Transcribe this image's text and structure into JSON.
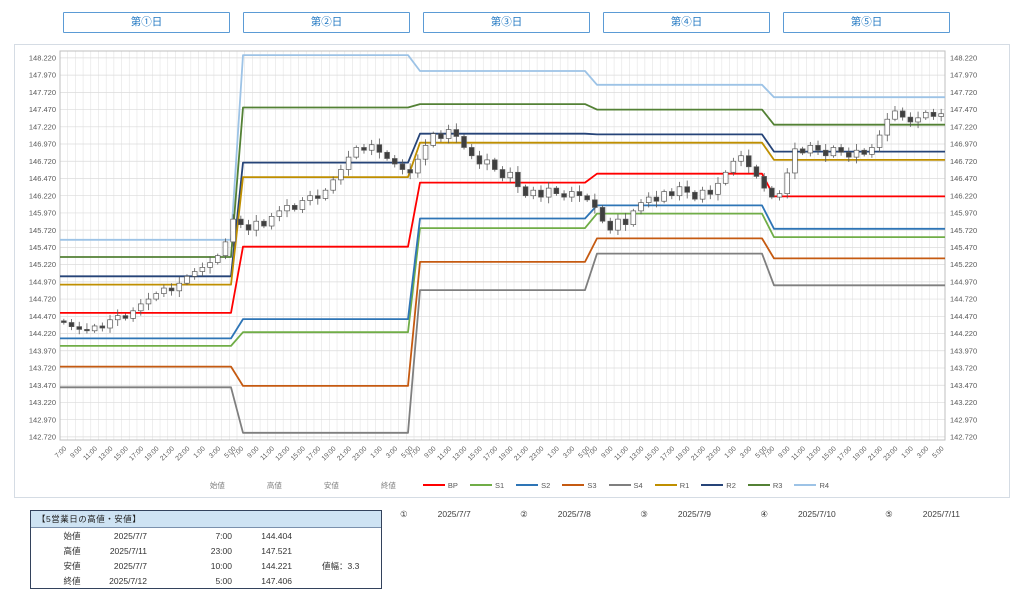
{
  "day_tabs": {
    "items": [
      {
        "label": "第①日"
      },
      {
        "label": "第②日"
      },
      {
        "label": "第③日"
      },
      {
        "label": "第④日"
      },
      {
        "label": "第⑤日"
      }
    ],
    "border_color": "#5B9BD5",
    "text_color": "#2077C2"
  },
  "chart_data": {
    "type": "candlestick",
    "title": "",
    "grid": true,
    "y_axis": {
      "min": 142.72,
      "max": 148.22,
      "step": 0.25,
      "tick_labels": [
        "148.220",
        "147.970",
        "147.720",
        "147.470",
        "147.220",
        "146.970",
        "146.720",
        "146.470",
        "146.220",
        "145.970",
        "145.720",
        "145.470",
        "145.220",
        "144.970",
        "144.720",
        "144.470",
        "144.220",
        "143.970",
        "143.720",
        "143.470",
        "143.220",
        "142.970",
        "142.720"
      ]
    },
    "x_axis": {
      "time_labels_per_day": [
        "7:00",
        "9:00",
        "11:00",
        "13:00",
        "15:00",
        "17:00",
        "19:00",
        "21:00",
        "23:00",
        "1:00",
        "3:00",
        "5:00"
      ],
      "days": 5,
      "candles_per_day": 23
    },
    "pivot_series": [
      {
        "name": "R4",
        "color": "#9DC3E6",
        "values": [
          145.58,
          148.26,
          148.03,
          147.83,
          147.65
        ]
      },
      {
        "name": "R3",
        "color": "#538135",
        "values": [
          145.33,
          147.5,
          147.55,
          147.47,
          147.25
        ]
      },
      {
        "name": "R2",
        "color": "#264478",
        "values": [
          145.05,
          146.7,
          147.12,
          147.11,
          146.86
        ]
      },
      {
        "name": "R1",
        "color": "#BF8F00",
        "values": [
          144.93,
          146.49,
          146.99,
          146.99,
          146.74
        ]
      },
      {
        "name": "S4",
        "color": "#7F7F7F",
        "values": [
          143.44,
          142.78,
          144.85,
          145.38,
          144.92
        ]
      },
      {
        "name": "S3",
        "color": "#C55A11",
        "values": [
          143.74,
          143.46,
          145.26,
          145.6,
          145.31
        ]
      },
      {
        "name": "S1",
        "color": "#70AD47",
        "values": [
          144.04,
          144.24,
          145.75,
          145.96,
          145.62
        ]
      },
      {
        "name": "S2",
        "color": "#2E75B6",
        "values": [
          144.15,
          144.43,
          145.89,
          146.08,
          145.74
        ]
      },
      {
        "name": "BP",
        "color": "#FF0000",
        "values": [
          144.52,
          145.48,
          146.41,
          146.54,
          146.21
        ]
      }
    ],
    "candles": {
      "up_fill": "#FFFFFF",
      "down_fill": "#3F3F3F",
      "outline": "#595959",
      "first_open": 144.404,
      "closes_by_day": [
        [
          144.38,
          144.32,
          144.28,
          144.26,
          144.33,
          144.3,
          144.42,
          144.48,
          144.44,
          144.55,
          144.65,
          144.72,
          144.8,
          144.88,
          144.84,
          144.95,
          145.05,
          145.12,
          145.18,
          145.25,
          145.35,
          145.55,
          145.88
        ],
        [
          145.8,
          145.72,
          145.85,
          145.78,
          145.92,
          146.0,
          146.08,
          146.02,
          146.15,
          146.22,
          146.18,
          146.3,
          146.45,
          146.6,
          146.78,
          146.92,
          146.88,
          146.96,
          146.85,
          146.76,
          146.68,
          146.6,
          146.55
        ],
        [
          146.75,
          146.95,
          147.12,
          147.05,
          147.18,
          147.08,
          146.92,
          146.8,
          146.68,
          146.74,
          146.6,
          146.48,
          146.56,
          146.35,
          146.22,
          146.3,
          146.2,
          146.33,
          146.25,
          146.2,
          146.28,
          146.22,
          146.16
        ],
        [
          146.05,
          145.85,
          145.72,
          145.88,
          145.8,
          146.0,
          146.12,
          146.2,
          146.14,
          146.28,
          146.22,
          146.35,
          146.27,
          146.17,
          146.3,
          146.24,
          146.4,
          146.56,
          146.72,
          146.8,
          146.64,
          146.5,
          146.33
        ],
        [
          146.2,
          146.25,
          146.55,
          146.9,
          146.84,
          146.95,
          146.88,
          146.8,
          146.92,
          146.85,
          146.78,
          146.88,
          146.82,
          146.92,
          147.1,
          147.33,
          147.45,
          147.36,
          147.29,
          147.35,
          147.43,
          147.37,
          147.41
        ]
      ],
      "extremes": {
        "low": {
          "day": 0,
          "index": 3,
          "price": 144.221
        },
        "high": {
          "day": 4,
          "index": 16,
          "price": 147.521
        }
      }
    }
  },
  "legend": {
    "ohlc_labels": [
      "始値",
      "高値",
      "安値",
      "終値"
    ],
    "series": [
      {
        "label": "BP",
        "color": "#FF0000"
      },
      {
        "label": "S1",
        "color": "#70AD47"
      },
      {
        "label": "S2",
        "color": "#2E75B6"
      },
      {
        "label": "S3",
        "color": "#C55A11"
      },
      {
        "label": "S4",
        "color": "#7F7F7F"
      },
      {
        "label": "R1",
        "color": "#BF8F00"
      },
      {
        "label": "R2",
        "color": "#264478"
      },
      {
        "label": "R3",
        "color": "#538135"
      },
      {
        "label": "R4",
        "color": "#9DC3E6"
      }
    ]
  },
  "summary_table": {
    "title": "【5営業日の高値・安値】",
    "rows": [
      {
        "label": "始値",
        "date": "2025/7/7",
        "time": "7:00",
        "value": "144.404",
        "note": ""
      },
      {
        "label": "高値",
        "date": "2025/7/11",
        "time": "23:00",
        "value": "147.521",
        "note": ""
      },
      {
        "label": "安値",
        "date": "2025/7/7",
        "time": "10:00",
        "value": "144.221",
        "note": "値幅：3.3"
      },
      {
        "label": "終値",
        "date": "2025/7/12",
        "time": "5:00",
        "value": "147.406",
        "note": ""
      }
    ]
  },
  "date_labels": [
    {
      "marker": "①",
      "date": "2025/7/7"
    },
    {
      "marker": "②",
      "date": "2025/7/8"
    },
    {
      "marker": "③",
      "date": "2025/7/9"
    },
    {
      "marker": "④",
      "date": "2025/7/10"
    },
    {
      "marker": "⑤",
      "date": "2025/7/11"
    }
  ]
}
